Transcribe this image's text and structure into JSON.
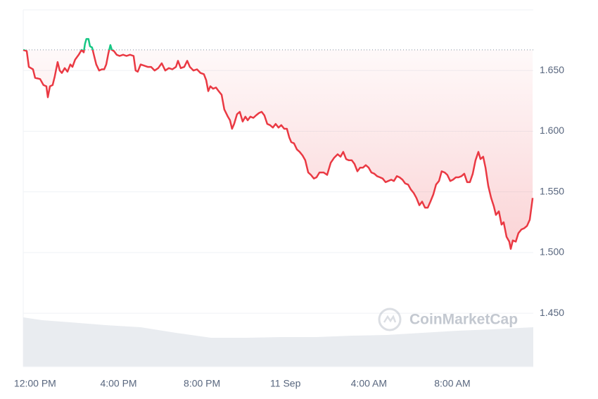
{
  "chart_data": {
    "type": "line",
    "watermark": "CoinMarketCap",
    "xlim": [
      -0.57,
      23.88
    ],
    "ylim": [
      1.406,
      1.7
    ],
    "xticks": [
      {
        "value": 0,
        "label": "12:00 PM"
      },
      {
        "value": 4,
        "label": "4:00 PM"
      },
      {
        "value": 8,
        "label": "8:00 PM"
      },
      {
        "value": 12,
        "label": "11 Sep"
      },
      {
        "value": 16,
        "label": "4:00 AM"
      },
      {
        "value": 20,
        "label": "8:00 AM"
      }
    ],
    "yticks": [
      {
        "value": 1.45,
        "label": "1.450"
      },
      {
        "value": 1.5,
        "label": "1.500"
      },
      {
        "value": 1.55,
        "label": "1.550"
      },
      {
        "value": 1.6,
        "label": "1.600"
      },
      {
        "value": 1.65,
        "label": "1.650"
      }
    ],
    "grid": true,
    "baseline": 1.667,
    "colors": {
      "up": "#16c784",
      "down": "#ea3943",
      "volume": "#e9ecf0"
    },
    "x": [
      -0.57,
      -0.4,
      -0.3,
      -0.1,
      0.0,
      0.24,
      0.4,
      0.54,
      0.61,
      0.71,
      0.84,
      0.94,
      1.08,
      1.18,
      1.28,
      1.42,
      1.55,
      1.69,
      1.79,
      1.92,
      2.09,
      2.23,
      2.33,
      2.39,
      2.46,
      2.56,
      2.63,
      2.73,
      2.83,
      2.93,
      3.07,
      3.2,
      3.31,
      3.41,
      3.51,
      3.61,
      3.68,
      3.78,
      3.91,
      4.05,
      4.22,
      4.38,
      4.55,
      4.72,
      4.82,
      4.92,
      5.06,
      5.4,
      5.56,
      5.73,
      5.9,
      6.07,
      6.24,
      6.41,
      6.58,
      6.75,
      6.85,
      6.98,
      7.15,
      7.29,
      7.42,
      7.59,
      7.76,
      7.93,
      8.09,
      8.2,
      8.3,
      8.4,
      8.53,
      8.67,
      8.8,
      8.94,
      9.07,
      9.24,
      9.34,
      9.44,
      9.54,
      9.68,
      9.81,
      9.95,
      10.08,
      10.19,
      10.32,
      10.46,
      10.59,
      10.73,
      10.86,
      10.99,
      11.13,
      11.26,
      11.4,
      11.53,
      11.67,
      11.8,
      11.94,
      12.07,
      12.18,
      12.28,
      12.41,
      12.55,
      12.68,
      12.82,
      12.95,
      13.09,
      13.22,
      13.36,
      13.49,
      13.63,
      13.83,
      14.0,
      14.17,
      14.33,
      14.5,
      14.64,
      14.77,
      14.91,
      15.04,
      15.18,
      15.31,
      15.45,
      15.58,
      15.72,
      15.85,
      15.99,
      16.12,
      16.26,
      16.39,
      16.53,
      16.66,
      16.8,
      16.93,
      17.07,
      17.2,
      17.34,
      17.47,
      17.61,
      17.74,
      17.88,
      18.01,
      18.15,
      18.28,
      18.42,
      18.55,
      18.69,
      18.82,
      18.95,
      19.09,
      19.22,
      19.36,
      19.49,
      19.63,
      19.76,
      19.9,
      20.03,
      20.17,
      20.3,
      20.44,
      20.57,
      20.71,
      20.84,
      20.98,
      21.11,
      21.25,
      21.35,
      21.48,
      21.59,
      21.72,
      21.86,
      21.99,
      22.09,
      22.23,
      22.36,
      22.46,
      22.6,
      22.73,
      22.8,
      22.9,
      23.04,
      23.17,
      23.31,
      23.44,
      23.58,
      23.71,
      23.85
    ],
    "values": [
      1.667,
      1.666,
      1.653,
      1.651,
      1.644,
      1.643,
      1.638,
      1.637,
      1.628,
      1.637,
      1.638,
      1.645,
      1.657,
      1.65,
      1.648,
      1.652,
      1.649,
      1.655,
      1.653,
      1.659,
      1.663,
      1.667,
      1.665,
      1.672,
      1.676,
      1.676,
      1.67,
      1.669,
      1.662,
      1.655,
      1.65,
      1.651,
      1.651,
      1.655,
      1.664,
      1.671,
      1.667,
      1.666,
      1.663,
      1.662,
      1.663,
      1.662,
      1.663,
      1.662,
      1.65,
      1.649,
      1.655,
      1.653,
      1.653,
      1.65,
      1.652,
      1.656,
      1.65,
      1.652,
      1.651,
      1.653,
      1.658,
      1.652,
      1.653,
      1.658,
      1.653,
      1.65,
      1.651,
      1.648,
      1.647,
      1.642,
      1.633,
      1.637,
      1.635,
      1.636,
      1.633,
      1.63,
      1.618,
      1.612,
      1.609,
      1.602,
      1.606,
      1.614,
      1.616,
      1.608,
      1.612,
      1.609,
      1.612,
      1.611,
      1.613,
      1.615,
      1.616,
      1.613,
      1.606,
      1.605,
      1.603,
      1.606,
      1.603,
      1.605,
      1.602,
      1.602,
      1.595,
      1.591,
      1.59,
      1.585,
      1.583,
      1.58,
      1.576,
      1.566,
      1.564,
      1.561,
      1.562,
      1.566,
      1.566,
      1.564,
      1.574,
      1.578,
      1.581,
      1.579,
      1.583,
      1.577,
      1.576,
      1.576,
      1.573,
      1.567,
      1.57,
      1.57,
      1.572,
      1.57,
      1.566,
      1.565,
      1.563,
      1.562,
      1.561,
      1.558,
      1.559,
      1.56,
      1.559,
      1.563,
      1.562,
      1.56,
      1.557,
      1.556,
      1.552,
      1.549,
      1.545,
      1.539,
      1.542,
      1.537,
      1.537,
      1.542,
      1.548,
      1.556,
      1.559,
      1.567,
      1.566,
      1.564,
      1.559,
      1.56,
      1.562,
      1.562,
      1.563,
      1.565,
      1.558,
      1.558,
      1.565,
      1.576,
      1.583,
      1.577,
      1.579,
      1.57,
      1.555,
      1.545,
      1.538,
      1.531,
      1.534,
      1.523,
      1.525,
      1.513,
      1.509,
      1.503,
      1.51,
      1.509,
      1.516,
      1.519,
      1.52,
      1.522,
      1.527,
      1.545
    ],
    "volume": {
      "x": [
        -0.57,
        0.34,
        1.69,
        3.37,
        5.06,
        6.75,
        8.43,
        10.12,
        11.8,
        13.49,
        15.18,
        16.86,
        18.55,
        20.24,
        21.92,
        23.88
      ],
      "values": [
        70,
        66,
        63,
        59,
        56,
        48,
        41,
        41,
        42,
        42,
        44,
        45,
        48,
        51,
        53,
        56
      ]
    }
  }
}
